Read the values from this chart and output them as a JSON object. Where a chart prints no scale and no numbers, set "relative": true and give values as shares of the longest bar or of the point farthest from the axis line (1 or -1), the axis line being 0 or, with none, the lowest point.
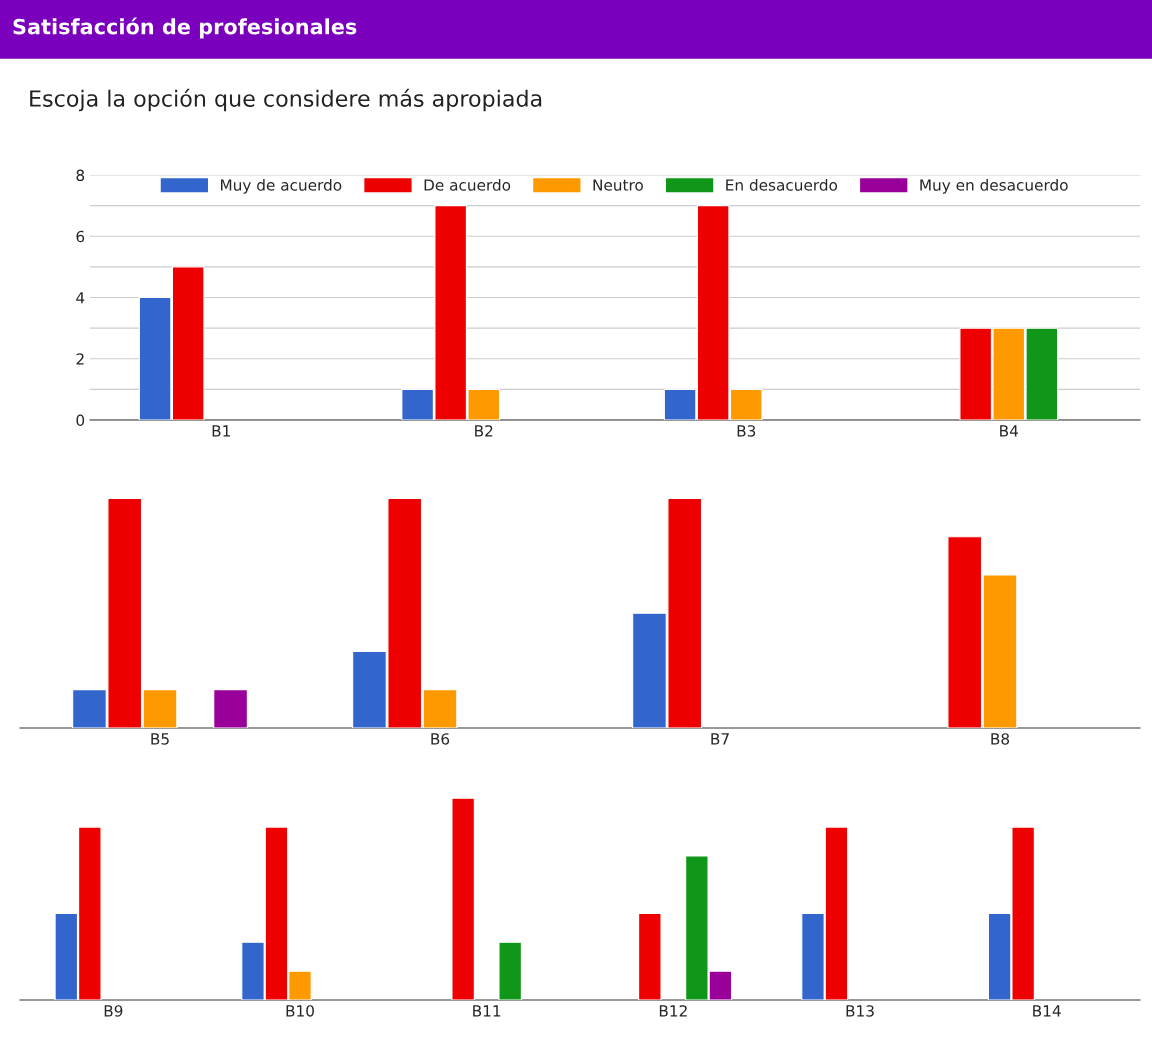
{
  "chart_data": [
    {
      "type": "bar",
      "title": "Satisfacción de profesionales",
      "subtitle": "Escoja la opción que considere más apropiada",
      "categories": [
        "B1",
        "B2",
        "B3",
        "B4"
      ],
      "ylim": [
        0,
        8
      ],
      "yticks": [
        0,
        {
          "value": 1,
          "label": null
        },
        2,
        {
          "value": 3,
          "label": null
        },
        4,
        {
          "value": 5,
          "label": null
        },
        6,
        {
          "value": 7,
          "label": null
        },
        8
      ],
      "grid": "y",
      "legend": "top",
      "series": [
        {
          "name": "Muy de acuerdo",
          "color": "#3366cc",
          "values": [
            4,
            1,
            1,
            null
          ]
        },
        {
          "name": "De acuerdo",
          "color": "#ee0000",
          "values": [
            5,
            7,
            7,
            3
          ]
        },
        {
          "name": "Neutro",
          "color": "#ff9900",
          "values": [
            null,
            1,
            1,
            3
          ]
        },
        {
          "name": "En desacuerdo",
          "color": "#109618",
          "values": [
            null,
            null,
            null,
            3
          ]
        },
        {
          "name": "Muy en desacuerdo",
          "color": "#990099",
          "values": [
            null,
            null,
            null,
            null
          ]
        }
      ]
    },
    {
      "type": "bar",
      "relative": true,
      "tick_labels": "x",
      "categories": [
        "B5",
        "B6",
        "B7",
        "B8"
      ],
      "series": [
        {
          "color": "#3366cc",
          "values": [
            0.167,
            0.333,
            0.5,
            null
          ]
        },
        {
          "color": "#ee0000",
          "values": [
            1,
            1,
            1,
            0.833
          ]
        },
        {
          "color": "#ff9900",
          "values": [
            0.167,
            0.167,
            null,
            0.667
          ]
        },
        {
          "values": [
            null,
            null,
            null,
            null
          ]
        },
        {
          "color": "#990099",
          "values": [
            0.167,
            null,
            null,
            null
          ]
        }
      ]
    },
    {
      "type": "bar",
      "relative": true,
      "tick_labels": "x",
      "categories": [
        "B9",
        "B10",
        "B11",
        "B12",
        "B13",
        "B14"
      ],
      "series": [
        {
          "color": "#3366cc",
          "values": [
            0.429,
            0.286,
            null,
            null,
            0.429,
            0.429
          ]
        },
        {
          "color": "#ee0000",
          "values": [
            0.857,
            0.857,
            1,
            0.429,
            0.857,
            0.857
          ]
        },
        {
          "color": "#ff9900",
          "values": [
            null,
            0.143,
            null,
            null,
            null,
            null
          ]
        },
        {
          "color": "#109618",
          "values": [
            null,
            null,
            0.286,
            0.714,
            null,
            null
          ]
        },
        {
          "color": "#990099",
          "values": [
            null,
            null,
            null,
            0.143,
            null,
            null
          ]
        }
      ]
    }
  ]
}
